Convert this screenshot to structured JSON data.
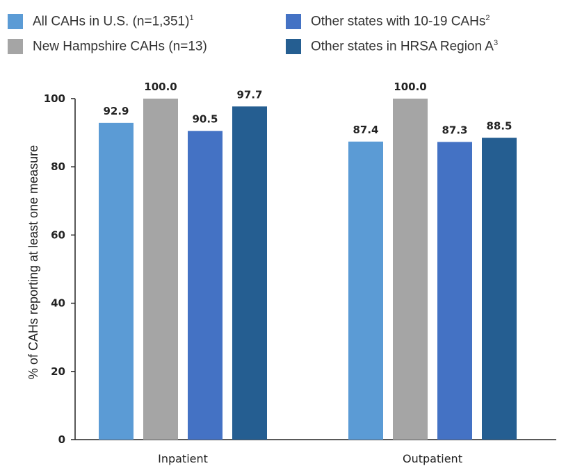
{
  "chart_data": {
    "type": "bar",
    "categories": [
      "Inpatient",
      "Outpatient"
    ],
    "series": [
      {
        "name": "All CAHs in U.S. (n=1,351)",
        "footnote": "1",
        "color": "#5b9bd5",
        "values": [
          92.9,
          87.4
        ]
      },
      {
        "name": "New Hampshire CAHs (n=13)",
        "footnote": "",
        "color": "#a5a5a5",
        "values": [
          100.0,
          100.0
        ]
      },
      {
        "name": "Other states with 10-19 CAHs",
        "footnote": "2",
        "color": "#4472c4",
        "values": [
          90.5,
          87.3
        ]
      },
      {
        "name": "Other states in HRSA Region A",
        "footnote": "3",
        "color": "#255e91",
        "values": [
          97.7,
          88.5
        ]
      }
    ],
    "ylabel": "% of CAHs reporting at least one measure",
    "ylim": [
      0,
      100
    ],
    "yticks": [
      0,
      20,
      40,
      60,
      80,
      100
    ],
    "legend_position": "top",
    "grid": false
  }
}
